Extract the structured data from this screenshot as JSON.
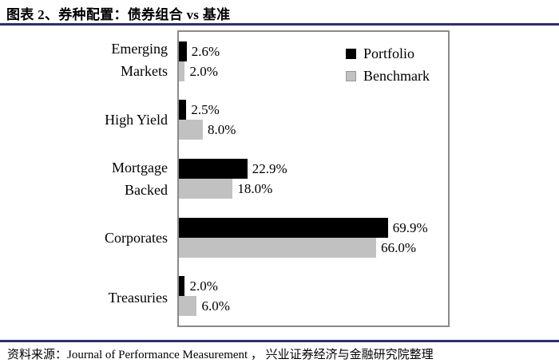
{
  "title": "图表 2、券种配置：债券组合 vs 基准",
  "colors": {
    "portfolio": "#000000",
    "benchmark": "#c1c1c1",
    "accent_rule": "#2d2d72",
    "plot_border": "#8a8a8a"
  },
  "legend": [
    {
      "label": "Portfolio",
      "color": "#000000"
    },
    {
      "label": "Benchmark",
      "color": "#c1c1c1"
    }
  ],
  "chart_data": {
    "type": "bar",
    "orientation": "horizontal",
    "title": "券种配置：债券组合 vs 基准",
    "categories": [
      "Emerging Markets",
      "High Yield",
      "Mortgage Backed",
      "Corporates",
      "Treasuries"
    ],
    "category_lines": [
      [
        "Emerging",
        "Markets"
      ],
      [
        "High Yield"
      ],
      [
        "Mortgage",
        "Backed"
      ],
      [
        "Corporates"
      ],
      [
        "Treasuries"
      ]
    ],
    "series": [
      {
        "name": "Portfolio",
        "color": "#000000",
        "values": [
          2.6,
          2.5,
          22.9,
          69.9,
          2.0
        ],
        "labels": [
          "2.6%",
          "2.5%",
          "22.9%",
          "69.9%",
          "2.0%"
        ]
      },
      {
        "name": "Benchmark",
        "color": "#c1c1c1",
        "values": [
          2.0,
          8.0,
          18.0,
          66.0,
          6.0
        ],
        "labels": [
          "2.0%",
          "8.0%",
          "18.0%",
          "66.0%",
          "6.0%"
        ]
      }
    ],
    "xlim": [
      0,
      90
    ],
    "grid": false,
    "value_labels": true,
    "legend_position": "inside-top-right"
  },
  "footer": {
    "source_label": "资料来源：",
    "source_text": "Journal of Performance Measurement ， 兴业证券经济与金融研究院整理"
  }
}
